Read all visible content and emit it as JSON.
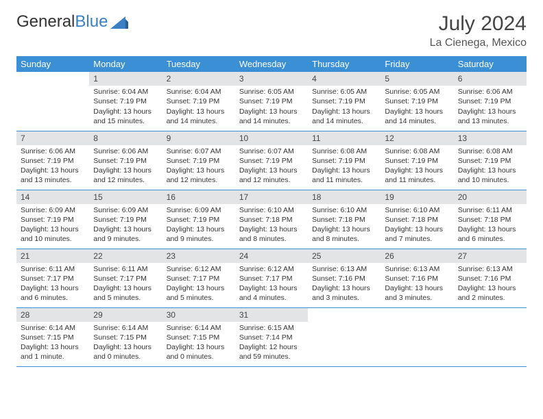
{
  "logo": {
    "text1": "General",
    "text2": "Blue"
  },
  "title": "July 2024",
  "location": "La Cienega, Mexico",
  "colors": {
    "header_bg": "#3b8fd4",
    "header_fg": "#ffffff",
    "daynum_bg": "#e2e4e6",
    "border": "#3b8fd4",
    "logo_blue": "#3b7fc4"
  },
  "weekdays": [
    "Sunday",
    "Monday",
    "Tuesday",
    "Wednesday",
    "Thursday",
    "Friday",
    "Saturday"
  ],
  "weeks": [
    [
      {
        "n": "",
        "t": ""
      },
      {
        "n": "1",
        "t": "Sunrise: 6:04 AM\nSunset: 7:19 PM\nDaylight: 13 hours and 15 minutes."
      },
      {
        "n": "2",
        "t": "Sunrise: 6:04 AM\nSunset: 7:19 PM\nDaylight: 13 hours and 14 minutes."
      },
      {
        "n": "3",
        "t": "Sunrise: 6:05 AM\nSunset: 7:19 PM\nDaylight: 13 hours and 14 minutes."
      },
      {
        "n": "4",
        "t": "Sunrise: 6:05 AM\nSunset: 7:19 PM\nDaylight: 13 hours and 14 minutes."
      },
      {
        "n": "5",
        "t": "Sunrise: 6:05 AM\nSunset: 7:19 PM\nDaylight: 13 hours and 14 minutes."
      },
      {
        "n": "6",
        "t": "Sunrise: 6:06 AM\nSunset: 7:19 PM\nDaylight: 13 hours and 13 minutes."
      }
    ],
    [
      {
        "n": "7",
        "t": "Sunrise: 6:06 AM\nSunset: 7:19 PM\nDaylight: 13 hours and 13 minutes."
      },
      {
        "n": "8",
        "t": "Sunrise: 6:06 AM\nSunset: 7:19 PM\nDaylight: 13 hours and 12 minutes."
      },
      {
        "n": "9",
        "t": "Sunrise: 6:07 AM\nSunset: 7:19 PM\nDaylight: 13 hours and 12 minutes."
      },
      {
        "n": "10",
        "t": "Sunrise: 6:07 AM\nSunset: 7:19 PM\nDaylight: 13 hours and 12 minutes."
      },
      {
        "n": "11",
        "t": "Sunrise: 6:08 AM\nSunset: 7:19 PM\nDaylight: 13 hours and 11 minutes."
      },
      {
        "n": "12",
        "t": "Sunrise: 6:08 AM\nSunset: 7:19 PM\nDaylight: 13 hours and 11 minutes."
      },
      {
        "n": "13",
        "t": "Sunrise: 6:08 AM\nSunset: 7:19 PM\nDaylight: 13 hours and 10 minutes."
      }
    ],
    [
      {
        "n": "14",
        "t": "Sunrise: 6:09 AM\nSunset: 7:19 PM\nDaylight: 13 hours and 10 minutes."
      },
      {
        "n": "15",
        "t": "Sunrise: 6:09 AM\nSunset: 7:19 PM\nDaylight: 13 hours and 9 minutes."
      },
      {
        "n": "16",
        "t": "Sunrise: 6:09 AM\nSunset: 7:19 PM\nDaylight: 13 hours and 9 minutes."
      },
      {
        "n": "17",
        "t": "Sunrise: 6:10 AM\nSunset: 7:18 PM\nDaylight: 13 hours and 8 minutes."
      },
      {
        "n": "18",
        "t": "Sunrise: 6:10 AM\nSunset: 7:18 PM\nDaylight: 13 hours and 8 minutes."
      },
      {
        "n": "19",
        "t": "Sunrise: 6:10 AM\nSunset: 7:18 PM\nDaylight: 13 hours and 7 minutes."
      },
      {
        "n": "20",
        "t": "Sunrise: 6:11 AM\nSunset: 7:18 PM\nDaylight: 13 hours and 6 minutes."
      }
    ],
    [
      {
        "n": "21",
        "t": "Sunrise: 6:11 AM\nSunset: 7:17 PM\nDaylight: 13 hours and 6 minutes."
      },
      {
        "n": "22",
        "t": "Sunrise: 6:11 AM\nSunset: 7:17 PM\nDaylight: 13 hours and 5 minutes."
      },
      {
        "n": "23",
        "t": "Sunrise: 6:12 AM\nSunset: 7:17 PM\nDaylight: 13 hours and 5 minutes."
      },
      {
        "n": "24",
        "t": "Sunrise: 6:12 AM\nSunset: 7:17 PM\nDaylight: 13 hours and 4 minutes."
      },
      {
        "n": "25",
        "t": "Sunrise: 6:13 AM\nSunset: 7:16 PM\nDaylight: 13 hours and 3 minutes."
      },
      {
        "n": "26",
        "t": "Sunrise: 6:13 AM\nSunset: 7:16 PM\nDaylight: 13 hours and 3 minutes."
      },
      {
        "n": "27",
        "t": "Sunrise: 6:13 AM\nSunset: 7:16 PM\nDaylight: 13 hours and 2 minutes."
      }
    ],
    [
      {
        "n": "28",
        "t": "Sunrise: 6:14 AM\nSunset: 7:15 PM\nDaylight: 13 hours and 1 minute."
      },
      {
        "n": "29",
        "t": "Sunrise: 6:14 AM\nSunset: 7:15 PM\nDaylight: 13 hours and 0 minutes."
      },
      {
        "n": "30",
        "t": "Sunrise: 6:14 AM\nSunset: 7:15 PM\nDaylight: 13 hours and 0 minutes."
      },
      {
        "n": "31",
        "t": "Sunrise: 6:15 AM\nSunset: 7:14 PM\nDaylight: 12 hours and 59 minutes."
      },
      {
        "n": "",
        "t": ""
      },
      {
        "n": "",
        "t": ""
      },
      {
        "n": "",
        "t": ""
      }
    ]
  ]
}
